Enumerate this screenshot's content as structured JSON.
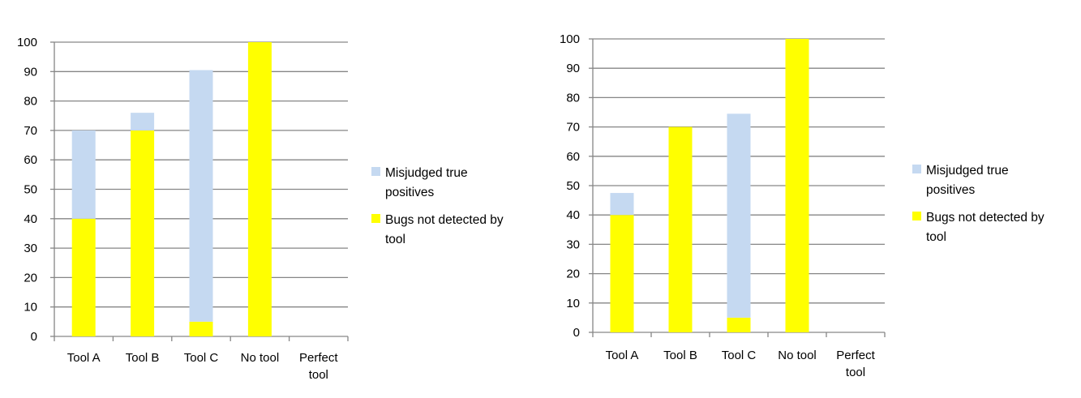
{
  "colors": {
    "misjudged": "#c5d9f1",
    "not_detected": "#ffff00",
    "grid": "#868686",
    "axis": "#868686",
    "text": "#000000"
  },
  "chart_data": [
    {
      "type": "bar",
      "stacked": true,
      "categories": [
        "Tool A",
        "Tool B",
        "Tool C",
        "No tool",
        "Perfect tool"
      ],
      "category_lines": [
        [
          "Tool A"
        ],
        [
          "Tool B"
        ],
        [
          "Tool C"
        ],
        [
          "No tool"
        ],
        [
          "Perfect",
          "tool"
        ]
      ],
      "series": [
        {
          "name": "Bugs not detected by tool",
          "name_lines": [
            "Bugs not detected by",
            "tool"
          ],
          "color": "#ffff00",
          "values": [
            40,
            70,
            5,
            100,
            0
          ]
        },
        {
          "name": "Misjudged true positives",
          "name_lines": [
            "Misjudged true",
            "positives"
          ],
          "color": "#c5d9f1",
          "values": [
            30,
            6,
            85.5,
            0,
            0
          ]
        }
      ],
      "legend_order": [
        1,
        0
      ],
      "ylim": [
        0,
        100
      ],
      "yticks": [
        0,
        10,
        20,
        30,
        40,
        50,
        60,
        70,
        80,
        90,
        100
      ],
      "grid": true,
      "legend": "right",
      "title": "",
      "xlabel": "",
      "ylabel": ""
    },
    {
      "type": "bar",
      "stacked": true,
      "categories": [
        "Tool A",
        "Tool B",
        "Tool C",
        "No tool",
        "Perfect tool"
      ],
      "category_lines": [
        [
          "Tool A"
        ],
        [
          "Tool B"
        ],
        [
          "Tool C"
        ],
        [
          "No tool"
        ],
        [
          "Perfect",
          "tool"
        ]
      ],
      "series": [
        {
          "name": "Bugs not detected by tool",
          "name_lines": [
            "Bugs not detected by",
            "tool"
          ],
          "color": "#ffff00",
          "values": [
            40,
            70,
            5,
            100,
            0
          ]
        },
        {
          "name": "Misjudged true positives",
          "name_lines": [
            "Misjudged true",
            "positives"
          ],
          "color": "#c5d9f1",
          "values": [
            7.5,
            0,
            69.5,
            0,
            0
          ]
        }
      ],
      "legend_order": [
        1,
        0
      ],
      "ylim": [
        0,
        100
      ],
      "yticks": [
        0,
        10,
        20,
        30,
        40,
        50,
        60,
        70,
        80,
        90,
        100
      ],
      "grid": true,
      "legend": "right",
      "title": "",
      "xlabel": "",
      "ylabel": ""
    }
  ]
}
